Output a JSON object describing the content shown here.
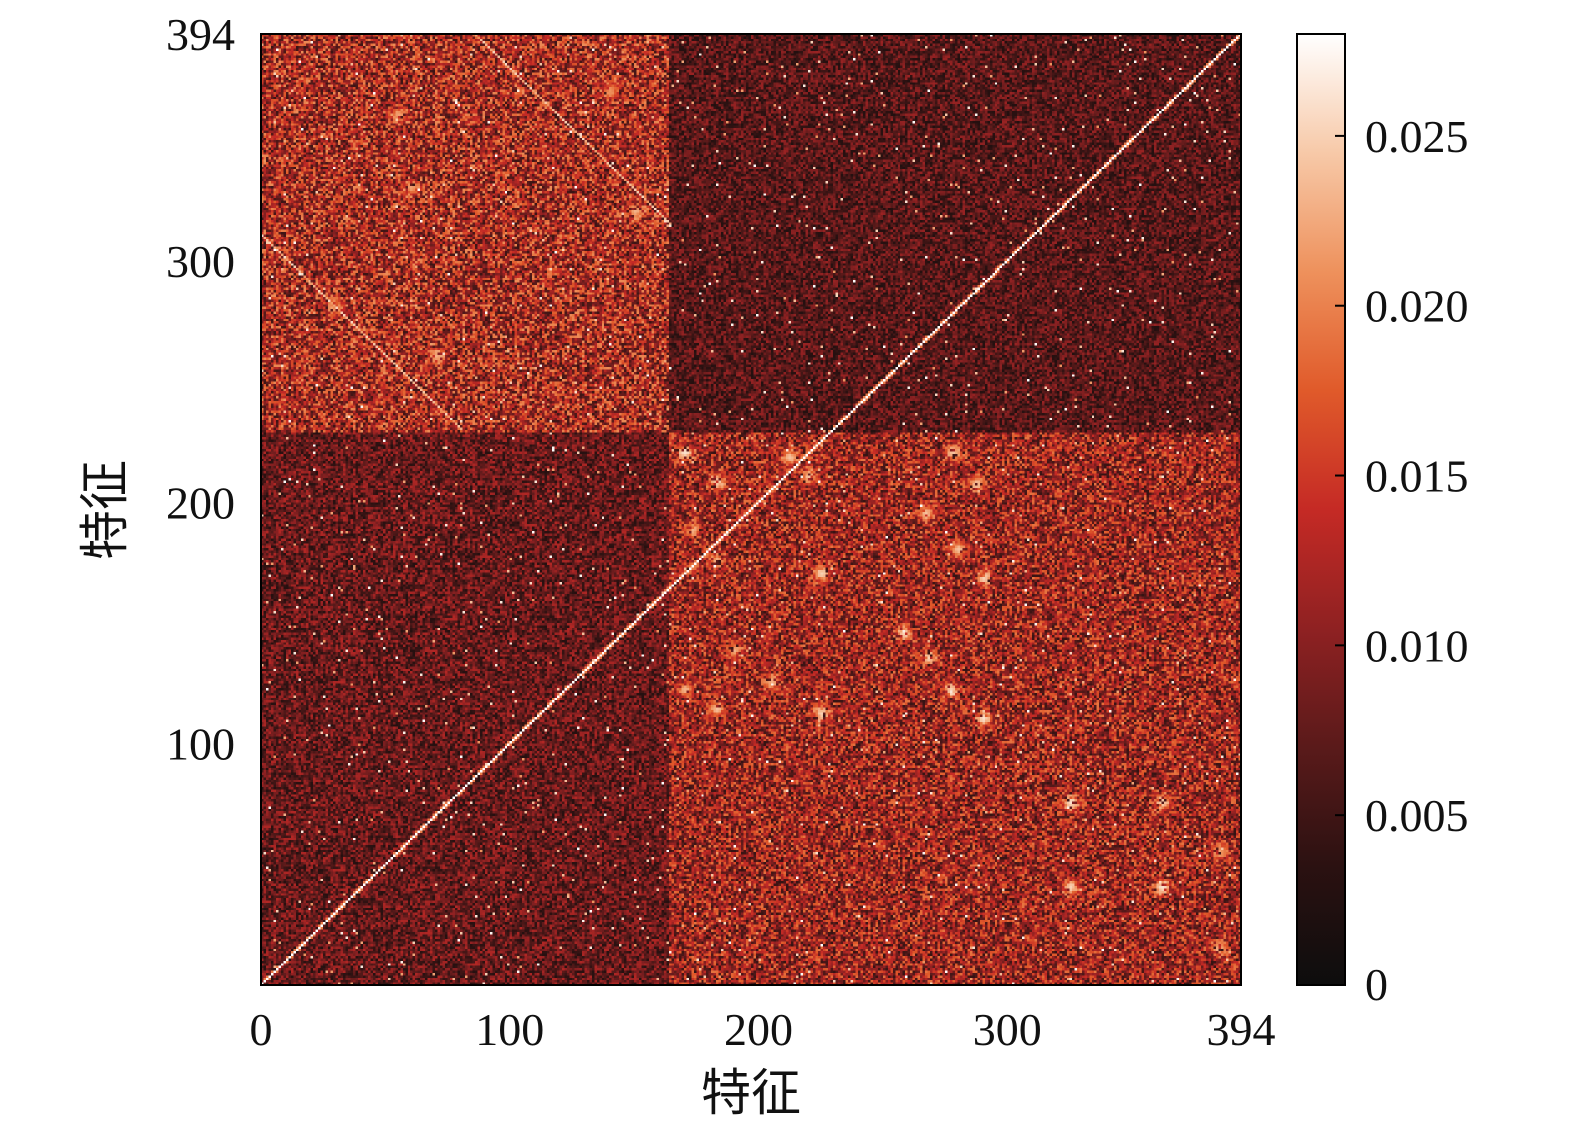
{
  "chart_data": {
    "type": "heatmap",
    "title": "",
    "xlabel": "特征",
    "ylabel": "特征",
    "matrix_size": 394,
    "x_ticks": [
      {
        "value": 0,
        "label": "0"
      },
      {
        "value": 100,
        "label": "100"
      },
      {
        "value": 200,
        "label": "200"
      },
      {
        "value": 300,
        "label": "300"
      },
      {
        "value": 394,
        "label": "394"
      }
    ],
    "y_ticks": [
      {
        "value": 100,
        "label": "100"
      },
      {
        "value": 200,
        "label": "200"
      },
      {
        "value": 300,
        "label": "300"
      },
      {
        "value": 394,
        "label": "394"
      }
    ],
    "colorbar": {
      "min": 0,
      "max": 0.028,
      "ticks": [
        {
          "value": 0,
          "label": "0"
        },
        {
          "value": 0.005,
          "label": "0.005"
        },
        {
          "value": 0.01,
          "label": "0.010"
        },
        {
          "value": 0.015,
          "label": "0.015"
        },
        {
          "value": 0.02,
          "label": "0.020"
        },
        {
          "value": 0.025,
          "label": "0.025"
        }
      ],
      "colormap_stops": [
        "#0d0d0d",
        "#2b1111",
        "#5a1a1a",
        "#8f2122",
        "#c52a25",
        "#e05a2a",
        "#ee915c",
        "#f7c9a8",
        "#ffffff"
      ]
    },
    "structure": {
      "background_level": 0.009,
      "diagonal_value": 0.028,
      "blocks": [
        {
          "rows": [
            229,
            394
          ],
          "cols": [
            0,
            164
          ],
          "level": 0.013
        },
        {
          "rows": [
            0,
            229
          ],
          "cols": [
            164,
            394
          ],
          "level": 0.012
        },
        {
          "rows": [
            229,
            394
          ],
          "cols": [
            164,
            394
          ],
          "level": 0.007
        },
        {
          "rows": [
            0,
            229
          ],
          "cols": [
            0,
            164
          ],
          "level": 0.008
        }
      ],
      "secondary_diagonals": [
        {
          "from": [
            0,
            310
          ],
          "to": [
            80,
            230
          ],
          "value": 0.026
        },
        {
          "from": [
            85,
            394
          ],
          "to": [
            164,
            315
          ],
          "value": 0.026
        }
      ],
      "hotspots": [
        {
          "row": 220,
          "col": 170,
          "value": 0.026
        },
        {
          "row": 208,
          "col": 183,
          "value": 0.025
        },
        {
          "row": 218,
          "col": 212,
          "value": 0.024
        },
        {
          "row": 210,
          "col": 220,
          "value": 0.024
        },
        {
          "row": 220,
          "col": 278,
          "value": 0.024
        },
        {
          "row": 207,
          "col": 287,
          "value": 0.024
        },
        {
          "row": 188,
          "col": 173,
          "value": 0.023
        },
        {
          "row": 175,
          "col": 183,
          "value": 0.023
        },
        {
          "row": 170,
          "col": 225,
          "value": 0.025
        },
        {
          "row": 195,
          "col": 267,
          "value": 0.024
        },
        {
          "row": 180,
          "col": 280,
          "value": 0.024
        },
        {
          "row": 168,
          "col": 290,
          "value": 0.025
        },
        {
          "row": 145,
          "col": 258,
          "value": 0.025
        },
        {
          "row": 135,
          "col": 268,
          "value": 0.025
        },
        {
          "row": 122,
          "col": 277,
          "value": 0.025
        },
        {
          "row": 110,
          "col": 290,
          "value": 0.026
        },
        {
          "row": 122,
          "col": 170,
          "value": 0.023
        },
        {
          "row": 114,
          "col": 183,
          "value": 0.024
        },
        {
          "row": 138,
          "col": 190,
          "value": 0.023
        },
        {
          "row": 125,
          "col": 205,
          "value": 0.023
        },
        {
          "row": 112,
          "col": 225,
          "value": 0.025
        },
        {
          "row": 75,
          "col": 325,
          "value": 0.026
        },
        {
          "row": 75,
          "col": 362,
          "value": 0.025
        },
        {
          "row": 40,
          "col": 325,
          "value": 0.025
        },
        {
          "row": 40,
          "col": 362,
          "value": 0.026
        },
        {
          "row": 55,
          "col": 385,
          "value": 0.022
        },
        {
          "row": 15,
          "col": 385,
          "value": 0.023
        },
        {
          "row": 360,
          "col": 55,
          "value": 0.022
        },
        {
          "row": 330,
          "col": 60,
          "value": 0.022
        },
        {
          "row": 280,
          "col": 30,
          "value": 0.021
        },
        {
          "row": 260,
          "col": 70,
          "value": 0.023
        },
        {
          "row": 370,
          "col": 140,
          "value": 0.021
        },
        {
          "row": 320,
          "col": 150,
          "value": 0.023
        }
      ]
    }
  }
}
